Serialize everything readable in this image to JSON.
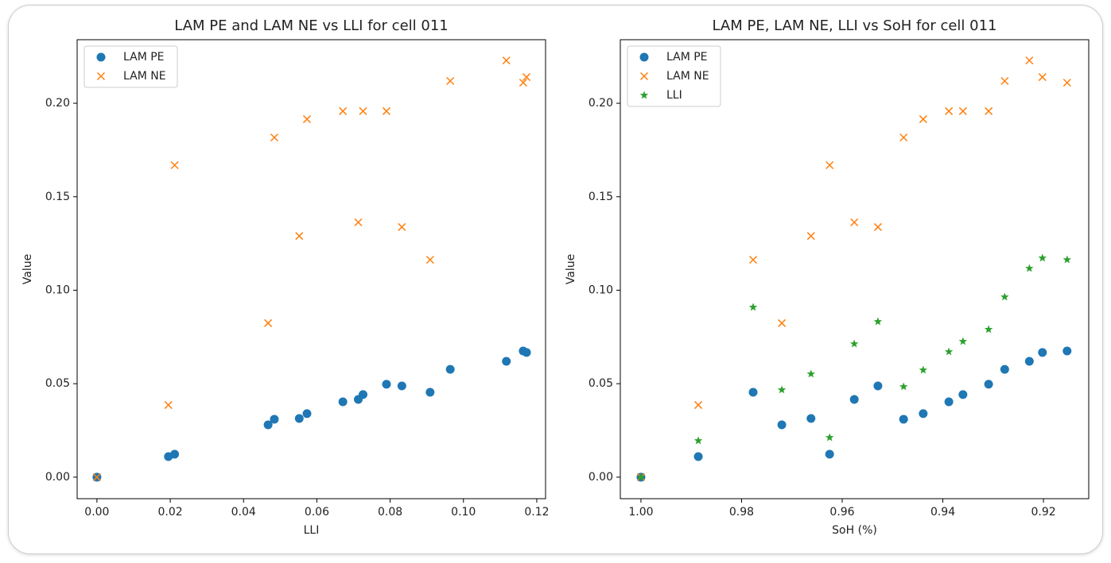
{
  "chart_data": [
    {
      "type": "scatter",
      "title": "LAM PE and LAM NE vs LLI for cell 011",
      "xlabel": "LLI",
      "ylabel": "Value",
      "x": [
        0,
        0.0195,
        0.0909,
        0.0467,
        0.0552,
        0.0212,
        0.0713,
        0.0832,
        0.0484,
        0.0573,
        0.0671,
        0.0726,
        0.079,
        0.0964,
        0.1117,
        0.1172,
        0.1163
      ],
      "series": [
        {
          "name": "LAM PE",
          "color": "#1f77b4",
          "marker": "o",
          "values": [
            0,
            0.011,
            0.0454,
            0.028,
            0.0314,
            0.0123,
            0.0416,
            0.0488,
            0.031,
            0.034,
            0.0403,
            0.0442,
            0.0497,
            0.0577,
            0.062,
            0.0667,
            0.0675
          ]
        },
        {
          "name": "LAM NE",
          "color": "#ff7f0e",
          "marker": "x",
          "values": [
            0,
            0.0386,
            0.1163,
            0.0824,
            0.129,
            0.1669,
            0.1363,
            0.1338,
            0.1817,
            0.1915,
            0.1958,
            0.1958,
            0.1958,
            0.2119,
            0.2229,
            0.214,
            0.211
          ]
        }
      ],
      "xlim": [
        -0.0054,
        0.1224
      ],
      "ylim": [
        -0.0115,
        0.234
      ],
      "xticks": [
        {
          "value": 0,
          "label": "0.00"
        },
        0.02,
        0.04,
        0.06,
        0.08,
        {
          "value": 0.1,
          "label": "0.10"
        },
        0.12
      ],
      "yticks": [
        {
          "value": 0,
          "label": "0.00"
        },
        0.05,
        {
          "value": 0.1,
          "label": "0.10"
        },
        0.15,
        {
          "value": 0.2,
          "label": "0.20"
        }
      ],
      "legend": "upper left"
    },
    {
      "type": "scatter",
      "title": "LAM PE, LAM NE, LLI vs SoH for cell 011",
      "xlabel": "SoH (%)",
      "ylabel": "Value",
      "x": [
        1,
        0.9886,
        0.9777,
        0.972,
        0.9662,
        0.9625,
        0.9576,
        0.9529,
        0.9478,
        0.9439,
        0.9388,
        0.936,
        0.9309,
        0.9277,
        0.9228,
        0.9202,
        0.9153
      ],
      "series": [
        {
          "name": "LAM PE",
          "color": "#1f77b4",
          "marker": "o",
          "values": [
            0,
            0.011,
            0.0454,
            0.028,
            0.0314,
            0.0123,
            0.0416,
            0.0488,
            0.031,
            0.034,
            0.0403,
            0.0442,
            0.0497,
            0.0577,
            0.062,
            0.0667,
            0.0675
          ]
        },
        {
          "name": "LAM NE",
          "color": "#ff7f0e",
          "marker": "x",
          "values": [
            0,
            0.0386,
            0.1163,
            0.0824,
            0.129,
            0.1669,
            0.1363,
            0.1338,
            0.1817,
            0.1915,
            0.1958,
            0.1958,
            0.1958,
            0.2119,
            0.2229,
            0.214,
            0.211
          ]
        },
        {
          "name": "LLI",
          "color": "#2ca02c",
          "marker": "*",
          "values": [
            0,
            0.0195,
            0.0909,
            0.0467,
            0.0552,
            0.0212,
            0.0713,
            0.0832,
            0.0484,
            0.0573,
            0.0671,
            0.0726,
            0.079,
            0.0964,
            0.1117,
            0.1172,
            0.1163
          ]
        }
      ],
      "xlim": [
        1.0041,
        0.911
      ],
      "ylim": [
        -0.0115,
        0.234
      ],
      "xticks": [
        {
          "value": 1,
          "label": "1.00"
        },
        0.98,
        0.96,
        0.94,
        0.92
      ],
      "yticks": [
        {
          "value": 0,
          "label": "0.00"
        },
        0.05,
        {
          "value": 0.1,
          "label": "0.10"
        },
        0.15,
        {
          "value": 0.2,
          "label": "0.20"
        }
      ],
      "legend": "upper left"
    }
  ]
}
